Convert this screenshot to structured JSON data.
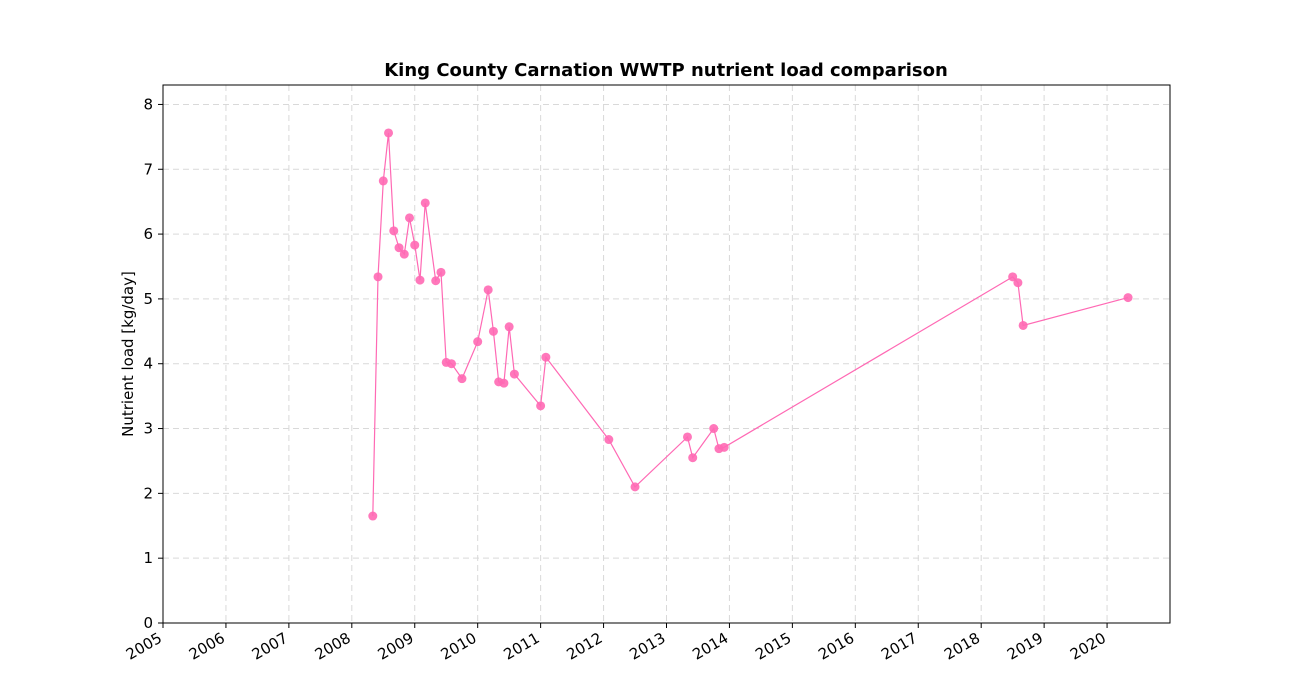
{
  "chart_data": {
    "type": "line",
    "title": "King County Carnation WWTP nutrient load comparison",
    "xlabel": "",
    "ylabel": "Nutrient load [kg/day]",
    "xlim": [
      "2005-01-01",
      "2021-01-01"
    ],
    "ylim": [
      0,
      8.3
    ],
    "x_ticks": [
      "2005",
      "2006",
      "2007",
      "2008",
      "2009",
      "2010",
      "2011",
      "2012",
      "2013",
      "2014",
      "2015",
      "2016",
      "2017",
      "2018",
      "2019",
      "2020"
    ],
    "y_ticks": [
      "0",
      "1",
      "2",
      "3",
      "4",
      "5",
      "6",
      "7",
      "8"
    ],
    "grid": true,
    "color": "#ff69b4",
    "series": [
      {
        "x": [
          "2008-05-01",
          "2008-06-01",
          "2008-07-01",
          "2008-08-01",
          "2008-09-01",
          "2008-10-01",
          "2008-11-01",
          "2008-12-01",
          "2009-01-01",
          "2009-02-01",
          "2009-03-01",
          "2009-05-01",
          "2009-06-01",
          "2009-07-01",
          "2009-08-01",
          "2009-10-01",
          "2010-01-01",
          "2010-03-01",
          "2010-04-01",
          "2010-05-01",
          "2010-06-01",
          "2010-07-01",
          "2010-08-01",
          "2011-01-01",
          "2011-02-01",
          "2012-02-01",
          "2012-07-01",
          "2013-05-01",
          "2013-06-01",
          "2013-10-01",
          "2013-11-01",
          "2013-12-01",
          "2018-07-01",
          "2018-08-01",
          "2018-09-01",
          "2020-05-01"
        ],
        "y": [
          1.65,
          5.34,
          6.82,
          7.56,
          6.05,
          5.79,
          5.69,
          6.25,
          5.83,
          5.29,
          6.48,
          5.28,
          5.41,
          4.02,
          4.0,
          3.77,
          4.34,
          5.14,
          4.5,
          3.72,
          3.7,
          4.57,
          3.84,
          3.35,
          4.1,
          2.83,
          2.1,
          2.87,
          2.55,
          3.0,
          2.69,
          2.71,
          5.34,
          5.25,
          4.59,
          5.02
        ]
      }
    ]
  }
}
